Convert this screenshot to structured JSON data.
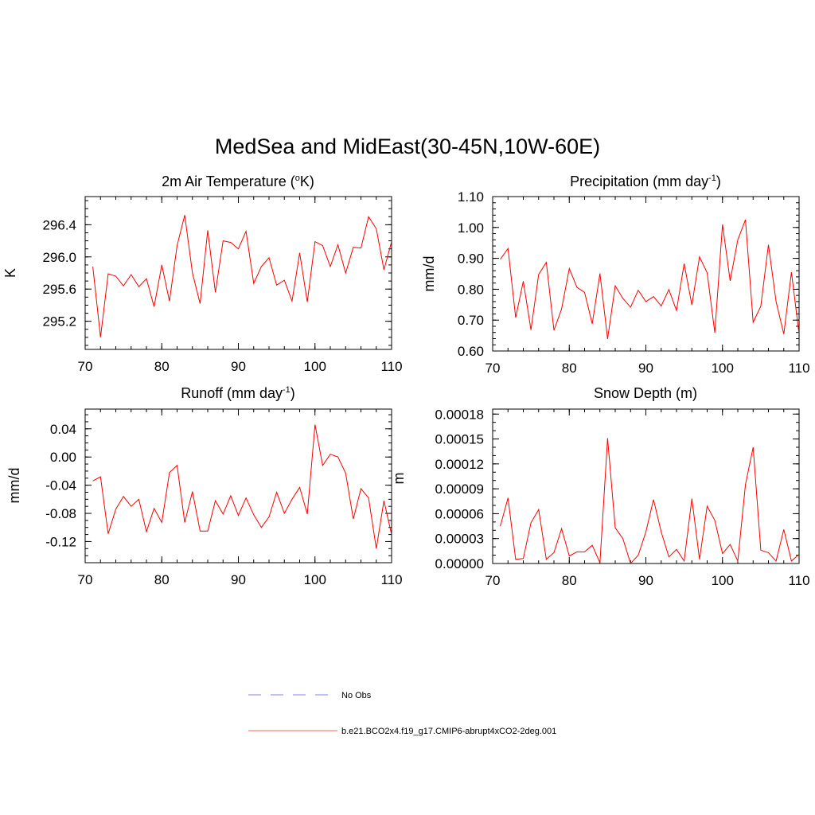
{
  "figure_title": "MedSea and MidEast(30-45N,10W-60E)",
  "legend": [
    {
      "label": "No Obs",
      "color": "#9999ff",
      "style": "dashed"
    },
    {
      "label": "b.e21.BCO2x4.f19_g17.CMIP6-abrupt4xCO2-2deg.001",
      "color": "#ff8080",
      "style": "solid"
    }
  ],
  "line_color": "#ff0000",
  "chart_data": [
    {
      "type": "line",
      "title": "2m Air Temperature (",
      "title_sup": "o",
      "title_tail": "K)",
      "ylabel": "K",
      "xlim": [
        70,
        110
      ],
      "ylim": [
        294.85,
        296.75
      ],
      "xticks": [
        70,
        80,
        90,
        100,
        110
      ],
      "xtick_labels": [
        "70",
        "80",
        "90",
        "100",
        "110"
      ],
      "yticks": [
        295.2,
        295.6,
        296.0,
        296.4
      ],
      "ytick_labels": [
        "295.2",
        "295.6",
        "296.0",
        "296.4"
      ],
      "yminor_step": 0.1,
      "x": [
        71,
        72,
        73,
        74,
        75,
        76,
        77,
        78,
        79,
        80,
        81,
        82,
        83,
        84,
        85,
        86,
        87,
        88,
        89,
        90,
        91,
        92,
        93,
        94,
        95,
        96,
        97,
        98,
        99,
        100,
        101,
        102,
        103,
        104,
        105,
        106,
        107,
        108,
        109,
        110
      ],
      "values": [
        295.88,
        295.0,
        295.79,
        295.76,
        295.64,
        295.78,
        295.63,
        295.73,
        295.38,
        295.9,
        295.45,
        296.14,
        296.52,
        295.8,
        295.42,
        296.33,
        295.56,
        296.2,
        296.18,
        296.1,
        296.32,
        295.67,
        295.88,
        295.99,
        295.65,
        295.71,
        295.45,
        296.05,
        295.44,
        296.19,
        296.14,
        295.88,
        296.15,
        295.8,
        296.12,
        296.11,
        296.5,
        296.35,
        295.84,
        296.19
      ]
    },
    {
      "type": "line",
      "title": "Precipitation (mm day",
      "title_sup": "-1",
      "title_tail": ")",
      "ylabel": "mm/d",
      "xlim": [
        70,
        110
      ],
      "ylim": [
        0.6,
        1.1
      ],
      "xticks": [
        70,
        80,
        90,
        100,
        110
      ],
      "xtick_labels": [
        "70",
        "80",
        "90",
        "100",
        "110"
      ],
      "yticks": [
        0.6,
        0.7,
        0.8,
        0.9,
        1.0,
        1.1
      ],
      "ytick_labels": [
        "0.60",
        "0.70",
        "0.80",
        "0.90",
        "1.00",
        "1.10"
      ],
      "yminor_step": 0.02,
      "x": [
        71,
        72,
        73,
        74,
        75,
        76,
        77,
        78,
        79,
        80,
        81,
        82,
        83,
        84,
        85,
        86,
        87,
        88,
        89,
        90,
        91,
        92,
        93,
        94,
        95,
        96,
        97,
        98,
        99,
        100,
        101,
        102,
        103,
        104,
        105,
        106,
        107,
        108,
        109,
        110
      ],
      "values": [
        0.897,
        0.932,
        0.708,
        0.826,
        0.668,
        0.848,
        0.887,
        0.667,
        0.736,
        0.867,
        0.806,
        0.79,
        0.688,
        0.851,
        0.639,
        0.811,
        0.77,
        0.742,
        0.797,
        0.76,
        0.776,
        0.746,
        0.799,
        0.731,
        0.883,
        0.749,
        0.905,
        0.853,
        0.659,
        1.01,
        0.827,
        0.96,
        1.025,
        0.693,
        0.745,
        0.944,
        0.76,
        0.655,
        0.855,
        0.655
      ]
    },
    {
      "type": "line",
      "title": "Runoff (mm day",
      "title_sup": "-1",
      "title_tail": ")",
      "ylabel": "mm/d",
      "xlim": [
        70,
        110
      ],
      "ylim": [
        -0.15,
        0.068
      ],
      "xticks": [
        70,
        80,
        90,
        100,
        110
      ],
      "xtick_labels": [
        "70",
        "80",
        "90",
        "100",
        "110"
      ],
      "yticks": [
        -0.12,
        -0.08,
        -0.04,
        0.0,
        0.04
      ],
      "ytick_labels": [
        "-0.12",
        "-0.08",
        "-0.04",
        "0.00",
        "0.04"
      ],
      "yminor_step": 0.01,
      "x": [
        71,
        72,
        73,
        74,
        75,
        76,
        77,
        78,
        79,
        80,
        81,
        82,
        83,
        84,
        85,
        86,
        87,
        88,
        89,
        90,
        91,
        92,
        93,
        94,
        95,
        96,
        97,
        98,
        99,
        100,
        101,
        102,
        103,
        104,
        105,
        106,
        107,
        108,
        109,
        110
      ],
      "values": [
        -0.034,
        -0.028,
        -0.109,
        -0.074,
        -0.056,
        -0.07,
        -0.06,
        -0.106,
        -0.073,
        -0.093,
        -0.022,
        -0.012,
        -0.093,
        -0.049,
        -0.105,
        -0.105,
        -0.062,
        -0.081,
        -0.055,
        -0.083,
        -0.058,
        -0.082,
        -0.1,
        -0.085,
        -0.05,
        -0.08,
        -0.06,
        -0.043,
        -0.081,
        0.046,
        -0.012,
        0.004,
        0.0,
        -0.023,
        -0.088,
        -0.045,
        -0.058,
        -0.13,
        -0.062,
        -0.11
      ]
    },
    {
      "type": "line",
      "title": "Snow Depth (m)",
      "title_sup": "",
      "title_tail": "",
      "ylabel": "m",
      "xlim": [
        70,
        110
      ],
      "ylim": [
        0.0,
        0.000186
      ],
      "xticks": [
        70,
        80,
        90,
        100,
        110
      ],
      "xtick_labels": [
        "70",
        "80",
        "90",
        "100",
        "110"
      ],
      "yticks": [
        0.0,
        3e-05,
        6e-05,
        9e-05,
        0.00012,
        0.00015,
        0.00018
      ],
      "ytick_labels": [
        "0.00000",
        "0.00003",
        "0.00006",
        "0.00009",
        "0.00012",
        "0.00015",
        "0.00018"
      ],
      "yminor_step": 1e-05,
      "x": [
        71,
        72,
        73,
        74,
        75,
        76,
        77,
        78,
        79,
        80,
        81,
        82,
        83,
        84,
        85,
        86,
        87,
        88,
        89,
        90,
        91,
        92,
        93,
        94,
        95,
        96,
        97,
        98,
        99,
        100,
        101,
        102,
        103,
        104,
        105,
        106,
        107,
        108,
        109,
        110
      ],
      "values": [
        4.5e-05,
        7.9e-05,
        5e-06,
        6e-06,
        4.9e-05,
        6.5e-05,
        5e-06,
        1.3e-05,
        4.2e-05,
        9e-06,
        1.4e-05,
        1.4e-05,
        2.2e-05,
        1e-06,
        0.000151,
        4.3e-05,
        3e-05,
        0.0,
        1e-05,
        3.8e-05,
        7.7e-05,
        3.8e-05,
        8e-06,
        1.7e-05,
        3e-06,
        7.8e-05,
        5e-06,
        6.9e-05,
        5.2e-05,
        1.2e-05,
        2.3e-05,
        3e-06,
        9.5e-05,
        0.00014,
        1.6e-05,
        1.3e-05,
        3e-06,
        4.1e-05,
        3e-06,
        1.1e-05
      ]
    }
  ]
}
